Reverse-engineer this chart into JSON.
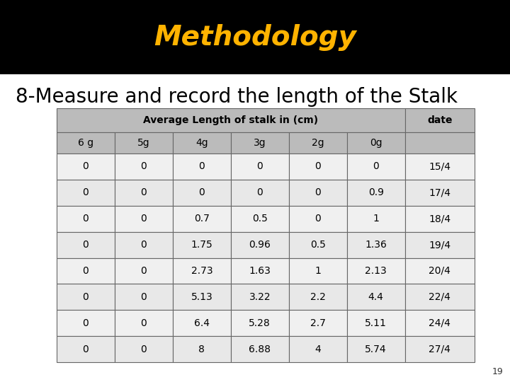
{
  "title": "Methodology",
  "subtitle": "8-Measure and record the length of the Stalk",
  "header_main": "Average Length of stalk in (cm)",
  "header_date": "date",
  "col_headers": [
    "6 g",
    "5g",
    "4g",
    "3g",
    "2g",
    "0g"
  ],
  "rows": [
    [
      "0",
      "0",
      "0",
      "0",
      "0",
      "0",
      "15/4"
    ],
    [
      "0",
      "0",
      "0",
      "0",
      "0",
      "0.9",
      "17/4"
    ],
    [
      "0",
      "0",
      "0.7",
      "0.5",
      "0",
      "1",
      "18/4"
    ],
    [
      "0",
      "0",
      "1.75",
      "0.96",
      "0.5",
      "1.36",
      "19/4"
    ],
    [
      "0",
      "0",
      "2.73",
      "1.63",
      "1",
      "2.13",
      "20/4"
    ],
    [
      "0",
      "0",
      "5.13",
      "3.22",
      "2.2",
      "4.4",
      "22/4"
    ],
    [
      "0",
      "0",
      "6.4",
      "5.28",
      "2.7",
      "5.11",
      "24/4"
    ],
    [
      "0",
      "0",
      "8",
      "6.88",
      "4",
      "5.74",
      "27/4"
    ]
  ],
  "title_bg": "#000000",
  "title_color": "#FFB300",
  "subtitle_color": "#000000",
  "page_bg": "#ffffff",
  "table_header_bg": "#bbbbbb",
  "row_bg_light": "#e8e8e8",
  "row_bg_dark": "#c8c8c8",
  "row_bg_white": "#f0f0f0",
  "page_number": "19",
  "title_fontsize": 28,
  "subtitle_fontsize": 20,
  "table_fontsize": 10,
  "header_fontsize": 10
}
